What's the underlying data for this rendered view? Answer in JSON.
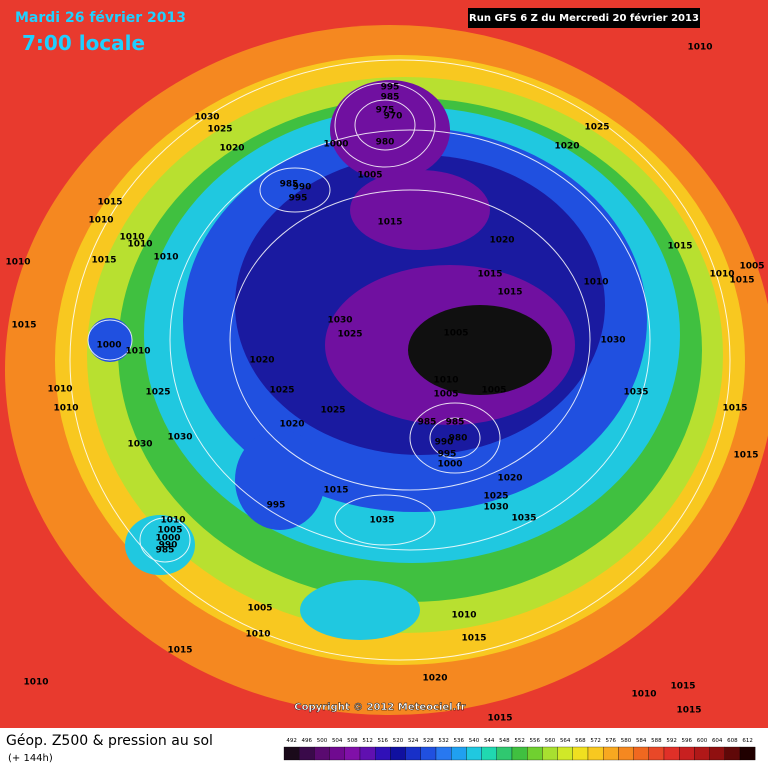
{
  "header": {
    "date": "Mardi 26 février 2013",
    "time": "7:00 locale",
    "run": "Run GFS 6 Z du Mercredi 20 février 2013"
  },
  "footer": {
    "title": "Géop. Z500 & pression au sol",
    "subtitle": "(+ 144h)",
    "copyright": "Copyright © 2012 Meteociel.fr"
  },
  "legend": {
    "labels": [
      492,
      496,
      500,
      504,
      508,
      512,
      516,
      520,
      524,
      528,
      532,
      536,
      540,
      544,
      548,
      552,
      556,
      560,
      564,
      568,
      572,
      576,
      580,
      584,
      588,
      592,
      596,
      600,
      604,
      608,
      612
    ],
    "colors": [
      "#1a0a1a",
      "#3a0a4a",
      "#5a0a70",
      "#700a90",
      "#8010a8",
      "#6010b0",
      "#3010b8",
      "#1010a0",
      "#1830c8",
      "#2050e0",
      "#2878f0",
      "#20a0f0",
      "#20c8e0",
      "#20d8b0",
      "#30c870",
      "#40c040",
      "#70d030",
      "#a8e030",
      "#d0e828",
      "#f0e020",
      "#f8c820",
      "#f8a820",
      "#f58820",
      "#f06820",
      "#e84828",
      "#e03028",
      "#c82020",
      "#b01818",
      "#901010",
      "#600808",
      "#200000"
    ]
  },
  "isobar_labels": [
    995,
    985,
    975,
    970,
    1030,
    1025,
    1025,
    1020,
    1000,
    980,
    1020,
    1005,
    985,
    990,
    995,
    1015,
    1010,
    1015,
    1010,
    1010,
    1020,
    1015,
    1010,
    1015,
    1005,
    1010,
    1015,
    1010,
    1015,
    1015,
    1010,
    1030,
    1025,
    1005,
    1030,
    1000,
    1010,
    1015,
    1020,
    1010,
    1005,
    1005,
    1025,
    1035,
    1010,
    1010,
    1025,
    1025,
    985,
    985,
    980,
    990,
    995,
    1000,
    1015,
    1020,
    1030,
    1030,
    1015,
    1020,
    1015,
    1025,
    1030,
    995,
    1035,
    1035,
    1010,
    1005,
    1000,
    990,
    985,
    1005,
    1010,
    1010,
    1015,
    1015,
    1020,
    1010,
    1010,
    1015,
    1015,
    1015,
    1010
  ]
}
